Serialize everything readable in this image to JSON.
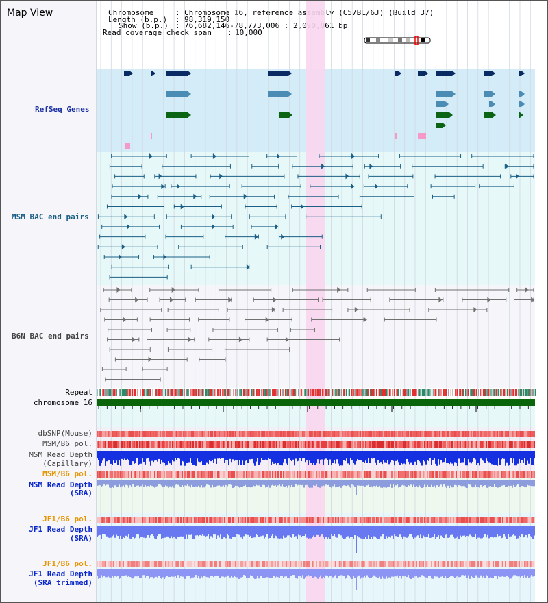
{
  "window": {
    "title": "Map View"
  },
  "info": {
    "chromosome_label": "Chromosome",
    "chromosome_value": "Chromosome 16, reference assembly (C57BL/6J) (Build 37)",
    "length_label": "Length (b.p.)",
    "length_value": "98,319,150",
    "show_label": "Show (b.p.)",
    "show_value": "76,682,146-78,773,006 : 2,090,861 bp",
    "coverage_label": "Read coverage check span",
    "coverage_value": "10,000"
  },
  "tracks": {
    "refseq": "RefSeq Genes",
    "msm_bac": "MSM BAC end pairs",
    "b6n_bac": "B6N BAC end pairs",
    "repeat": "Repeat",
    "chromosome": "chromosome 16",
    "dbsnp": "dbSNP(Mouse)",
    "msm_b6_pol_1": "MSM/B6 pol.",
    "msm_depth_cap_1": "MSM Read Depth",
    "msm_depth_cap_2": "(Capillary)",
    "msm_b6_pol_2": "MSM/B6 pol.",
    "msm_depth_sra_1": "MSM Read Depth",
    "msm_depth_sra_2": "(SRA)",
    "jf1_b6_pol_1": "JF1/B6 pol.",
    "jf1_depth_sra_1": "JF1 Read Depth",
    "jf1_depth_sra_2": "(SRA)",
    "jf1_b6_pol_2": "JF1/B6 pol.",
    "jf1_trim_1": "JF1 Read Depth",
    "jf1_trim_2": "(SRA trimmed)"
  },
  "axis": {
    "ticks": [
      "76800000",
      "77200000",
      "77600000",
      "78000000",
      "78400000"
    ]
  },
  "colors": {
    "refseq_bg": "#d4ecf8",
    "msm_bg": "#e6f8f8",
    "b6n_bg": "#f6f6fa",
    "highlight": "#fad6ee",
    "navy": "#0a2a64",
    "steel": "#4a8cb4",
    "green": "#0a6414",
    "pink": "#f59ac8",
    "teal": "#1b5f86",
    "grey": "#707070",
    "chrom": "#0a640a"
  }
}
